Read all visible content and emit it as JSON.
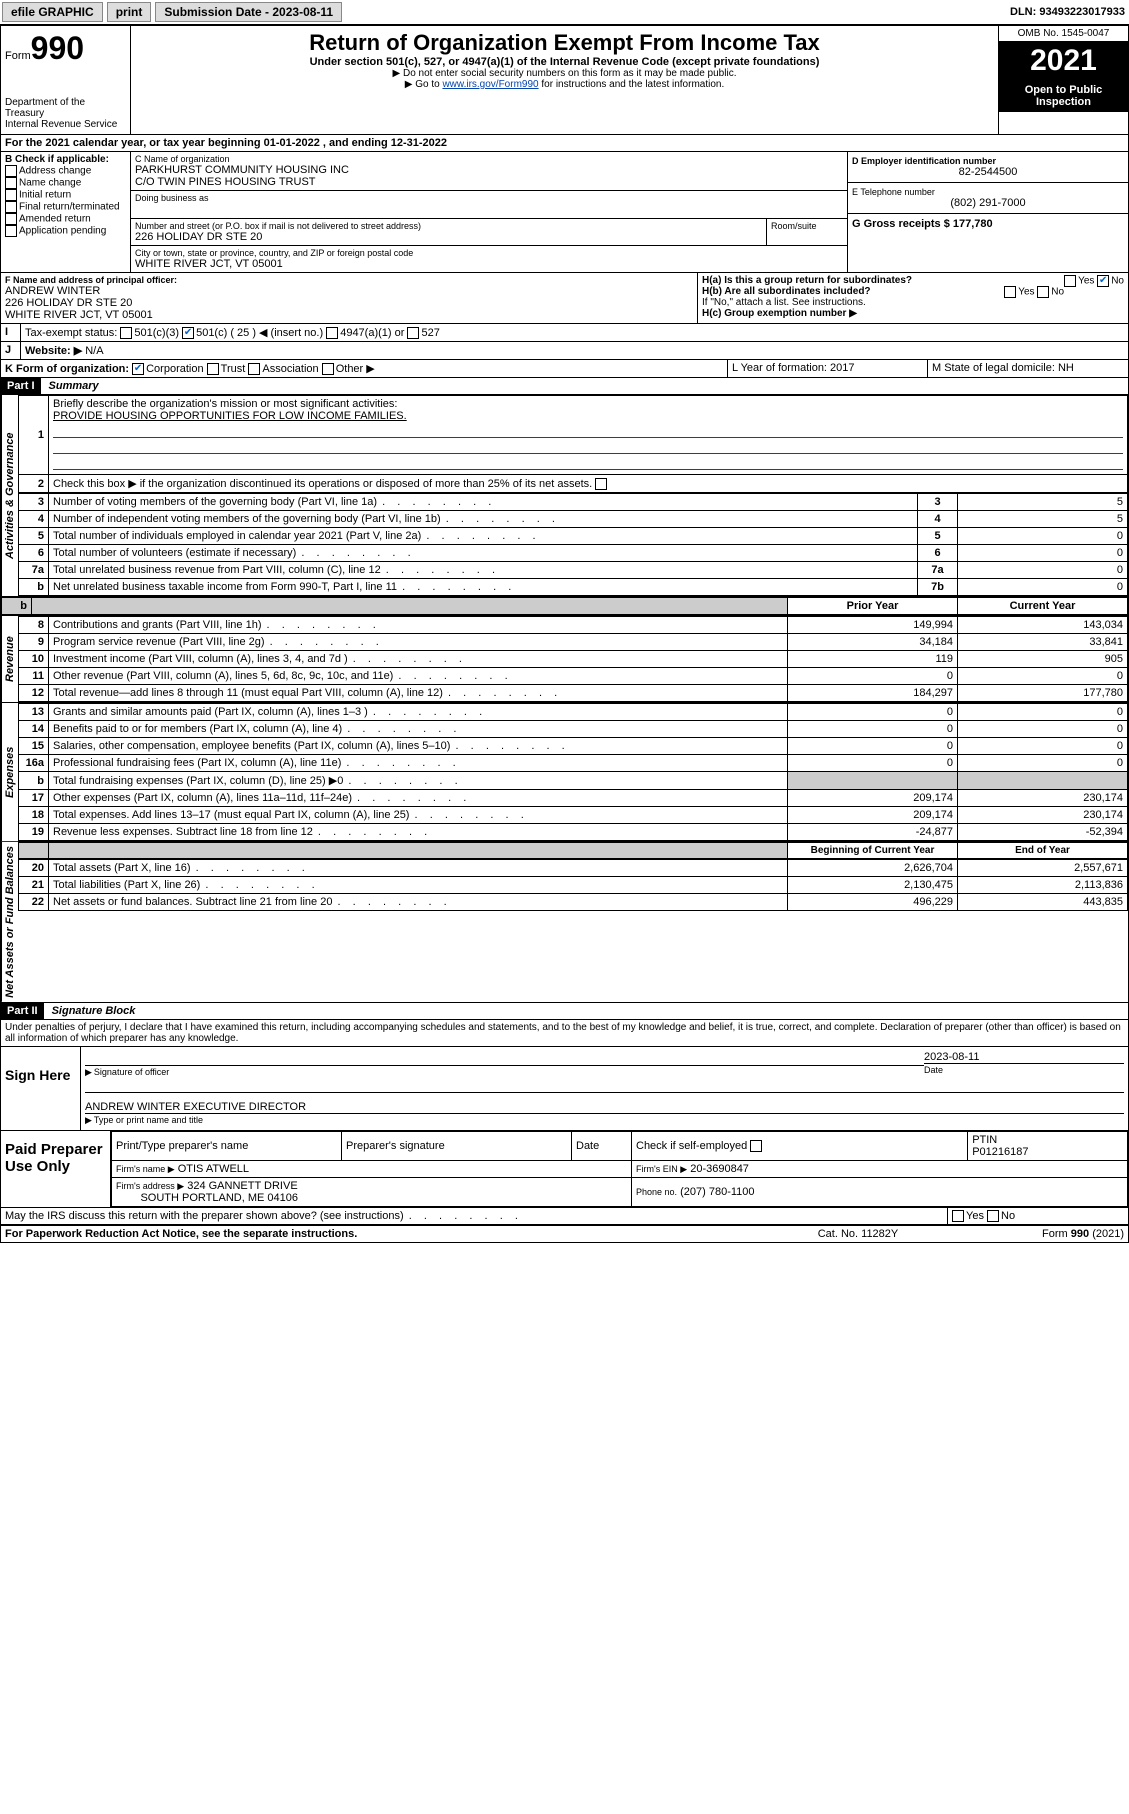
{
  "topbar": {
    "efile": "efile GRAPHIC",
    "print": "print",
    "sub_label": "Submission Date - 2023-08-11",
    "dln_label": "DLN: 93493223017933"
  },
  "header": {
    "form_label": "Form",
    "form_no": "990",
    "dept": "Department of the Treasury",
    "irs": "Internal Revenue Service",
    "title": "Return of Organization Exempt From Income Tax",
    "subtitle": "Under section 501(c), 527, or 4947(a)(1) of the Internal Revenue Code (except private foundations)",
    "warn": "▶ Do not enter social security numbers on this form as it may be made public.",
    "goto": "▶ Go to www.irs.gov/Form990 for instructions and the latest information.",
    "goto_link": "www.irs.gov/Form990",
    "omb": "OMB No. 1545-0047",
    "year": "2021",
    "inspect": "Open to Public Inspection"
  },
  "lineA": "For the 2021 calendar year, or tax year beginning 01-01-2022  , and ending 12-31-2022",
  "boxB": {
    "label": "B Check if applicable:",
    "opts": [
      "Address change",
      "Name change",
      "Initial return",
      "Final return/terminated",
      "Amended return",
      "Application pending"
    ]
  },
  "boxC": {
    "label": "C Name of organization",
    "name": "PARKHURST COMMUNITY HOUSING INC",
    "co": "C/O TWIN PINES HOUSING TRUST",
    "dba_label": "Doing business as",
    "addr_label": "Number and street (or P.O. box if mail is not delivered to street address)",
    "room_label": "Room/suite",
    "addr": "226 HOLIDAY DR STE 20",
    "city_label": "City or town, state or province, country, and ZIP or foreign postal code",
    "city": "WHITE RIVER JCT, VT  05001"
  },
  "boxD": {
    "label": "D Employer identification number",
    "val": "82-2544500"
  },
  "boxE": {
    "label": "E Telephone number",
    "val": "(802) 291-7000"
  },
  "boxG": {
    "label": "G Gross receipts $ 177,780"
  },
  "boxF": {
    "label": "F Name and address of principal officer:",
    "name": "ANDREW WINTER",
    "addr1": "226 HOLIDAY DR STE 20",
    "addr2": "WHITE RIVER JCT, VT  05001"
  },
  "boxH": {
    "a": "H(a)  Is this a group return for subordinates?",
    "b": "H(b)  Are all subordinates included?",
    "note": "If \"No,\" attach a list. See instructions.",
    "c": "H(c)  Group exemption number ▶",
    "yes": "Yes",
    "no": "No"
  },
  "lineI": {
    "label": "Tax-exempt status:",
    "o1": "501(c)(3)",
    "o2": "501(c) ( 25 ) ◀ (insert no.)",
    "o3": "4947(a)(1) or",
    "o4": "527"
  },
  "lineJ": {
    "label": "Website: ▶",
    "val": "N/A"
  },
  "lineK": {
    "label": "K Form of organization:",
    "o1": "Corporation",
    "o2": "Trust",
    "o3": "Association",
    "o4": "Other ▶"
  },
  "lineL": "L Year of formation: 2017",
  "lineM": "M State of legal domicile: NH",
  "part1": {
    "hdr": "Part I",
    "title": "Summary",
    "l1": "Briefly describe the organization's mission or most significant activities:",
    "l1val": "PROVIDE HOUSING OPPORTUNITIES FOR LOW INCOME FAMILIES.",
    "l2": "Check this box ▶       if the organization discontinued its operations or disposed of more than 25% of its net assets.",
    "rows_gov": [
      {
        "n": "3",
        "t": "Number of voting members of the governing body (Part VI, line 1a)",
        "box": "3",
        "v": "5"
      },
      {
        "n": "4",
        "t": "Number of independent voting members of the governing body (Part VI, line 1b)",
        "box": "4",
        "v": "5"
      },
      {
        "n": "5",
        "t": "Total number of individuals employed in calendar year 2021 (Part V, line 2a)",
        "box": "5",
        "v": "0"
      },
      {
        "n": "6",
        "t": "Total number of volunteers (estimate if necessary)",
        "box": "6",
        "v": "0"
      },
      {
        "n": "7a",
        "t": "Total unrelated business revenue from Part VIII, column (C), line 12",
        "box": "7a",
        "v": "0"
      },
      {
        "n": "b",
        "t": "Net unrelated business taxable income from Form 990-T, Part I, line 11",
        "box": "7b",
        "v": "0"
      }
    ],
    "prior": "Prior Year",
    "current": "Current Year",
    "rows_rev": [
      {
        "n": "8",
        "t": "Contributions and grants (Part VIII, line 1h)",
        "p": "149,994",
        "c": "143,034"
      },
      {
        "n": "9",
        "t": "Program service revenue (Part VIII, line 2g)",
        "p": "34,184",
        "c": "33,841"
      },
      {
        "n": "10",
        "t": "Investment income (Part VIII, column (A), lines 3, 4, and 7d )",
        "p": "119",
        "c": "905"
      },
      {
        "n": "11",
        "t": "Other revenue (Part VIII, column (A), lines 5, 6d, 8c, 9c, 10c, and 11e)",
        "p": "0",
        "c": "0"
      },
      {
        "n": "12",
        "t": "Total revenue—add lines 8 through 11 (must equal Part VIII, column (A), line 12)",
        "p": "184,297",
        "c": "177,780"
      }
    ],
    "rows_exp": [
      {
        "n": "13",
        "t": "Grants and similar amounts paid (Part IX, column (A), lines 1–3 )",
        "p": "0",
        "c": "0"
      },
      {
        "n": "14",
        "t": "Benefits paid to or for members (Part IX, column (A), line 4)",
        "p": "0",
        "c": "0"
      },
      {
        "n": "15",
        "t": "Salaries, other compensation, employee benefits (Part IX, column (A), lines 5–10)",
        "p": "0",
        "c": "0"
      },
      {
        "n": "16a",
        "t": "Professional fundraising fees (Part IX, column (A), line 11e)",
        "p": "0",
        "c": "0"
      },
      {
        "n": "b",
        "t": "Total fundraising expenses (Part IX, column (D), line 25) ▶0",
        "p": "",
        "c": "",
        "shaded": true
      },
      {
        "n": "17",
        "t": "Other expenses (Part IX, column (A), lines 11a–11d, 11f–24e)",
        "p": "209,174",
        "c": "230,174"
      },
      {
        "n": "18",
        "t": "Total expenses. Add lines 13–17 (must equal Part IX, column (A), line 25)",
        "p": "209,174",
        "c": "230,174"
      },
      {
        "n": "19",
        "t": "Revenue less expenses. Subtract line 18 from line 12",
        "p": "-24,877",
        "c": "-52,394"
      }
    ],
    "begin": "Beginning of Current Year",
    "end": "End of Year",
    "rows_net": [
      {
        "n": "20",
        "t": "Total assets (Part X, line 16)",
        "p": "2,626,704",
        "c": "2,557,671"
      },
      {
        "n": "21",
        "t": "Total liabilities (Part X, line 26)",
        "p": "2,130,475",
        "c": "2,113,836"
      },
      {
        "n": "22",
        "t": "Net assets or fund balances. Subtract line 21 from line 20",
        "p": "496,229",
        "c": "443,835"
      }
    ]
  },
  "part2": {
    "hdr": "Part II",
    "title": "Signature Block",
    "decl": "Under penalties of perjury, I declare that I have examined this return, including accompanying schedules and statements, and to the best of my knowledge and belief, it is true, correct, and complete. Declaration of preparer (other than officer) is based on all information of which preparer has any knowledge.",
    "sign_here": "Sign Here",
    "sig_officer": "Signature of officer",
    "sig_date": "2023-08-11",
    "date_lbl": "Date",
    "officer_name": "ANDREW WINTER  EXECUTIVE DIRECTOR",
    "name_lbl": "Type or print name and title",
    "paid": "Paid Preparer Use Only",
    "prep_name_lbl": "Print/Type preparer's name",
    "prep_sig_lbl": "Preparer's signature",
    "check_lbl": "Check         if self-employed",
    "ptin_lbl": "PTIN",
    "ptin": "P01216187",
    "firm_name_lbl": "Firm's name   ▶",
    "firm_name": "OTIS ATWELL",
    "firm_ein_lbl": "Firm's EIN ▶",
    "firm_ein": "20-3690847",
    "firm_addr_lbl": "Firm's address ▶",
    "firm_addr1": "324 GANNETT DRIVE",
    "firm_addr2": "SOUTH PORTLAND, ME  04106",
    "phone_lbl": "Phone no.",
    "phone": "(207) 780-1100",
    "discuss": "May the IRS discuss this return with the preparer shown above? (see instructions)",
    "paperwork": "For Paperwork Reduction Act Notice, see the separate instructions.",
    "cat": "Cat. No. 11282Y",
    "formfoot": "Form 990 (2021)"
  },
  "sidelabels": {
    "gov": "Activities & Governance",
    "rev": "Revenue",
    "exp": "Expenses",
    "net": "Net Assets or Fund Balances"
  }
}
